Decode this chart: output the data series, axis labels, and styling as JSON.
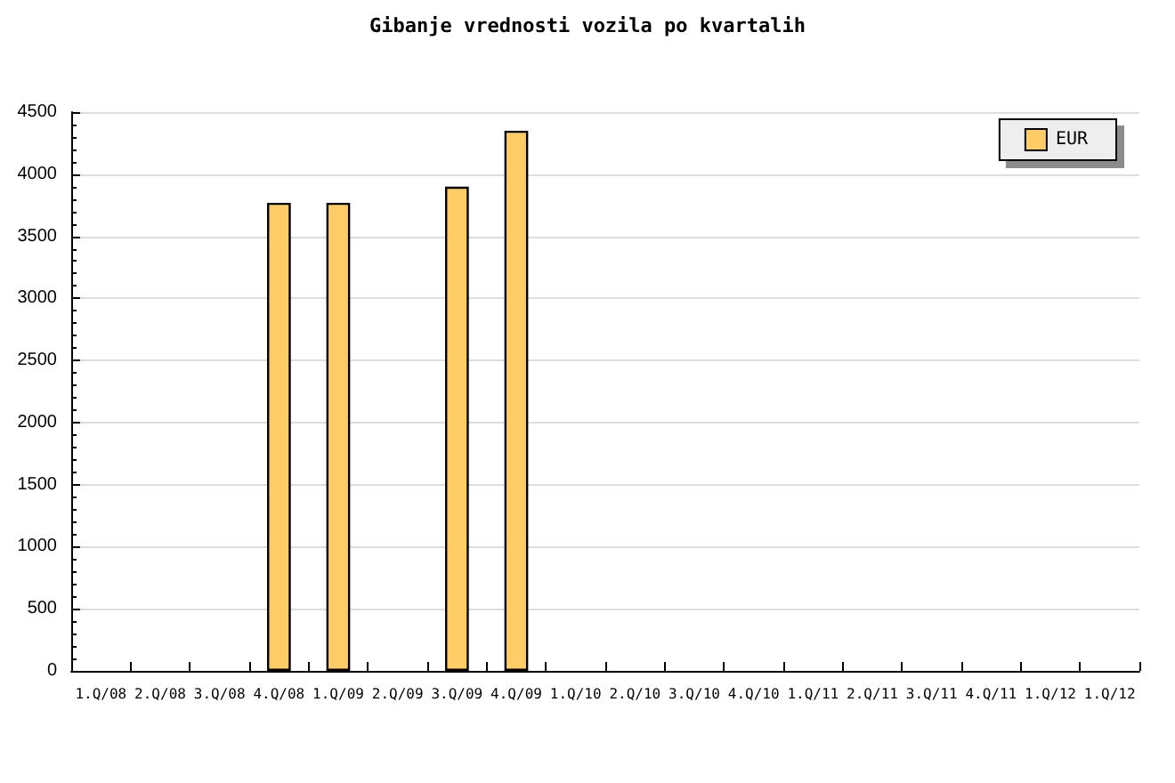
{
  "chart_data": {
    "type": "bar",
    "title": "Gibanje vrednosti vozila po kvartalih",
    "categories": [
      "1.Q/08",
      "2.Q/08",
      "3.Q/08",
      "4.Q/08",
      "1.Q/09",
      "2.Q/09",
      "3.Q/09",
      "4.Q/09",
      "1.Q/10",
      "2.Q/10",
      "3.Q/10",
      "4.Q/10",
      "1.Q/11",
      "2.Q/11",
      "3.Q/11",
      "4.Q/11",
      "1.Q/12",
      "1.Q/12"
    ],
    "series": [
      {
        "name": "EUR",
        "color": "#ffcc66",
        "values": [
          null,
          null,
          null,
          3770,
          3770,
          null,
          3900,
          4350,
          null,
          null,
          null,
          null,
          null,
          null,
          null,
          null,
          null,
          null
        ]
      }
    ],
    "ylim": [
      0,
      4500
    ],
    "yticks": [
      0,
      500,
      1000,
      1500,
      2000,
      2500,
      3000,
      3500,
      4000,
      4500
    ],
    "grid": "y",
    "legend": "top right"
  }
}
